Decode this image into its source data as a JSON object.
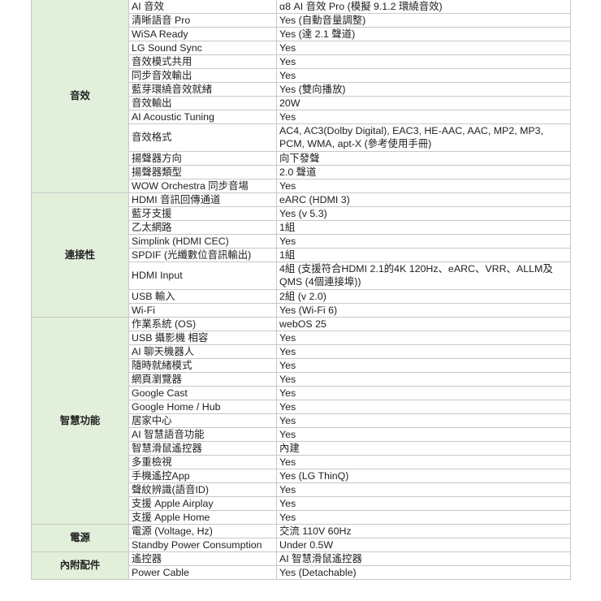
{
  "colors": {
    "category_bg": "#e2efda",
    "border": "#c8c8c8"
  },
  "groups": [
    {
      "category": "音效",
      "rows": [
        {
          "feature": "AI 音效",
          "value": "α8 AI 音效 Pro (模擬 9.1.2 環繞音效)"
        },
        {
          "feature": "清晰語音 Pro",
          "value": "Yes (自動音量調整)"
        },
        {
          "feature": "WiSA Ready",
          "value": "Yes (達 2.1 聲道)"
        },
        {
          "feature": "LG Sound Sync",
          "value": "Yes"
        },
        {
          "feature": "音效模式共用",
          "value": "Yes"
        },
        {
          "feature": "同步音效輸出",
          "value": "Yes"
        },
        {
          "feature": "藍芽環繞音效就緒",
          "value": "Yes (雙向播放)"
        },
        {
          "feature": "音效輸出",
          "value": "20W"
        },
        {
          "feature": "AI Acoustic Tuning",
          "value": "Yes"
        },
        {
          "feature": "音效格式",
          "value": "AC4, AC3(Dolby Digital), EAC3, HE-AAC, AAC, MP2, MP3, PCM, WMA, apt-X (參考使用手冊)",
          "double": true
        },
        {
          "feature": "揚聲器方向",
          "value": "向下發聲"
        },
        {
          "feature": "揚聲器類型",
          "value": "2.0 聲道"
        },
        {
          "feature": "WOW Orchestra 同步音場",
          "value": "Yes"
        }
      ]
    },
    {
      "category": "連接性",
      "rows": [
        {
          "feature": "HDMI 音訊回傳通道",
          "value": "eARC (HDMI 3)"
        },
        {
          "feature": "藍牙支援",
          "value": "Yes (v 5.3)"
        },
        {
          "feature": "乙太網路",
          "value": "1組"
        },
        {
          "feature": "Simplink (HDMI CEC)",
          "value": "Yes"
        },
        {
          "feature": "SPDIF (光纖數位音訊輸出)",
          "value": "1組"
        },
        {
          "feature": "HDMI Input",
          "value": "4組 (支援符合HDMI 2.1的4K 120Hz、eARC、VRR、ALLM及 QMS (4個連接埠))",
          "double": true
        },
        {
          "feature": "USB 輸入",
          "value": "2組 (v 2.0)"
        },
        {
          "feature": "Wi-Fi",
          "value": "Yes (Wi-Fi 6)"
        }
      ]
    },
    {
      "category": "智慧功能",
      "rows": [
        {
          "feature": "作業系統 (OS)",
          "value": "webOS 25"
        },
        {
          "feature": "USB 攝影機 相容",
          "value": "Yes"
        },
        {
          "feature": "AI 聊天機器人",
          "value": "Yes"
        },
        {
          "feature": "隨時就緒模式",
          "value": "Yes"
        },
        {
          "feature": "網頁瀏覽器",
          "value": "Yes"
        },
        {
          "feature": "Google Cast",
          "value": "Yes"
        },
        {
          "feature": "Google Home / Hub",
          "value": "Yes"
        },
        {
          "feature": "居家中心",
          "value": "Yes"
        },
        {
          "feature": "AI 智慧語音功能",
          "value": "Yes"
        },
        {
          "feature": "智慧滑鼠遙控器",
          "value": "內建"
        },
        {
          "feature": "多重檢視",
          "value": "Yes"
        },
        {
          "feature": "手機遙控App",
          "value": "Yes (LG ThinQ)"
        },
        {
          "feature": "聲紋辨識(語音ID)",
          "value": "Yes"
        },
        {
          "feature": "支援 Apple Airplay",
          "value": "Yes"
        },
        {
          "feature": "支援 Apple Home",
          "value": "Yes"
        }
      ]
    },
    {
      "category": "電源",
      "rows": [
        {
          "feature": "電源 (Voltage, Hz)",
          "value": "交流 110V 60Hz"
        },
        {
          "feature": "Standby Power Consumption",
          "value": "Under 0.5W"
        }
      ]
    },
    {
      "category": "內附配件",
      "rows": [
        {
          "feature": "遙控器",
          "value": "AI 智慧滑鼠遙控器"
        },
        {
          "feature": "Power Cable",
          "value": "Yes (Detachable)"
        }
      ]
    }
  ]
}
